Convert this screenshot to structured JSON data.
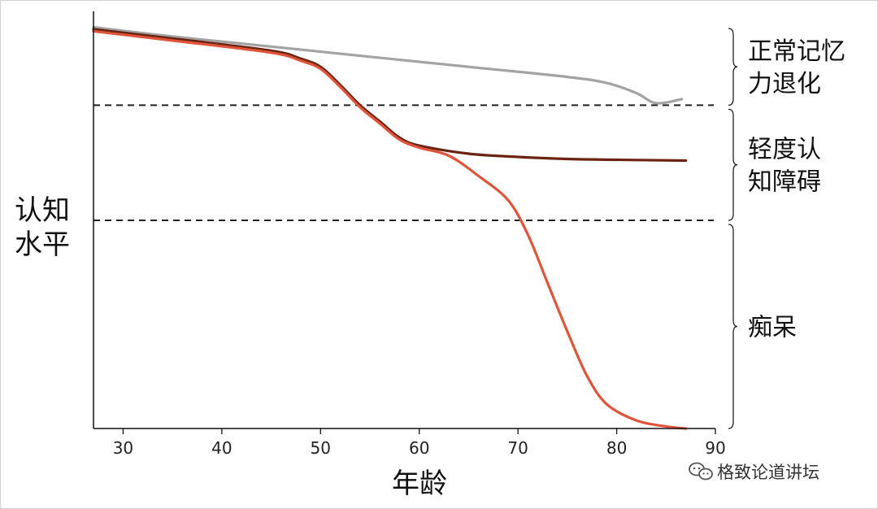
{
  "chart_data": {
    "type": "line",
    "xlabel": "年龄",
    "ylabel_lines": [
      "认知",
      "水平"
    ],
    "xlim": [
      27,
      90
    ],
    "ylim": [
      0,
      1
    ],
    "x_ticks": [
      30,
      40,
      50,
      60,
      70,
      80,
      90
    ],
    "y_ticks": [],
    "grid": false,
    "legend": "none",
    "thresholds": [
      {
        "y": 0.8
      },
      {
        "y": 0.515
      }
    ],
    "zones": [
      {
        "lines": [
          "正常记忆",
          "力退化"
        ],
        "y_range": [
          0.8,
          0.99
        ]
      },
      {
        "lines": [
          "轻度认",
          "知障碍"
        ],
        "y_range": [
          0.515,
          0.79
        ]
      },
      {
        "lines": [
          "痴呆"
        ],
        "y_range": [
          0.0,
          0.505
        ]
      }
    ],
    "series": [
      {
        "color": "#a3a3a3",
        "x": [
          27,
          35,
          45,
          55,
          65,
          75,
          79,
          82,
          84,
          86.6
        ],
        "y": [
          0.993,
          0.97,
          0.945,
          0.92,
          0.895,
          0.87,
          0.855,
          0.83,
          0.805,
          0.815
        ]
      },
      {
        "color": "#6b2412",
        "x": [
          27,
          35,
          45,
          48,
          50,
          52,
          54,
          56,
          58,
          60,
          65,
          70,
          75,
          80,
          87
        ],
        "y": [
          0.988,
          0.965,
          0.935,
          0.915,
          0.895,
          0.85,
          0.8,
          0.76,
          0.72,
          0.7,
          0.68,
          0.672,
          0.667,
          0.665,
          0.663
        ]
      },
      {
        "color": "#e0553a",
        "x": [
          27,
          35,
          45,
          48,
          50,
          52,
          54,
          56,
          58,
          60,
          63,
          66,
          69,
          71,
          73,
          75,
          77,
          79,
          82,
          85,
          87
        ],
        "y": [
          0.983,
          0.96,
          0.93,
          0.91,
          0.89,
          0.845,
          0.795,
          0.755,
          0.715,
          0.695,
          0.675,
          0.625,
          0.565,
          0.48,
          0.36,
          0.24,
          0.13,
          0.06,
          0.02,
          0.005,
          0.0
        ]
      }
    ]
  },
  "watermark": {
    "icon": "wechat-icon",
    "text": "格致论道讲坛"
  }
}
